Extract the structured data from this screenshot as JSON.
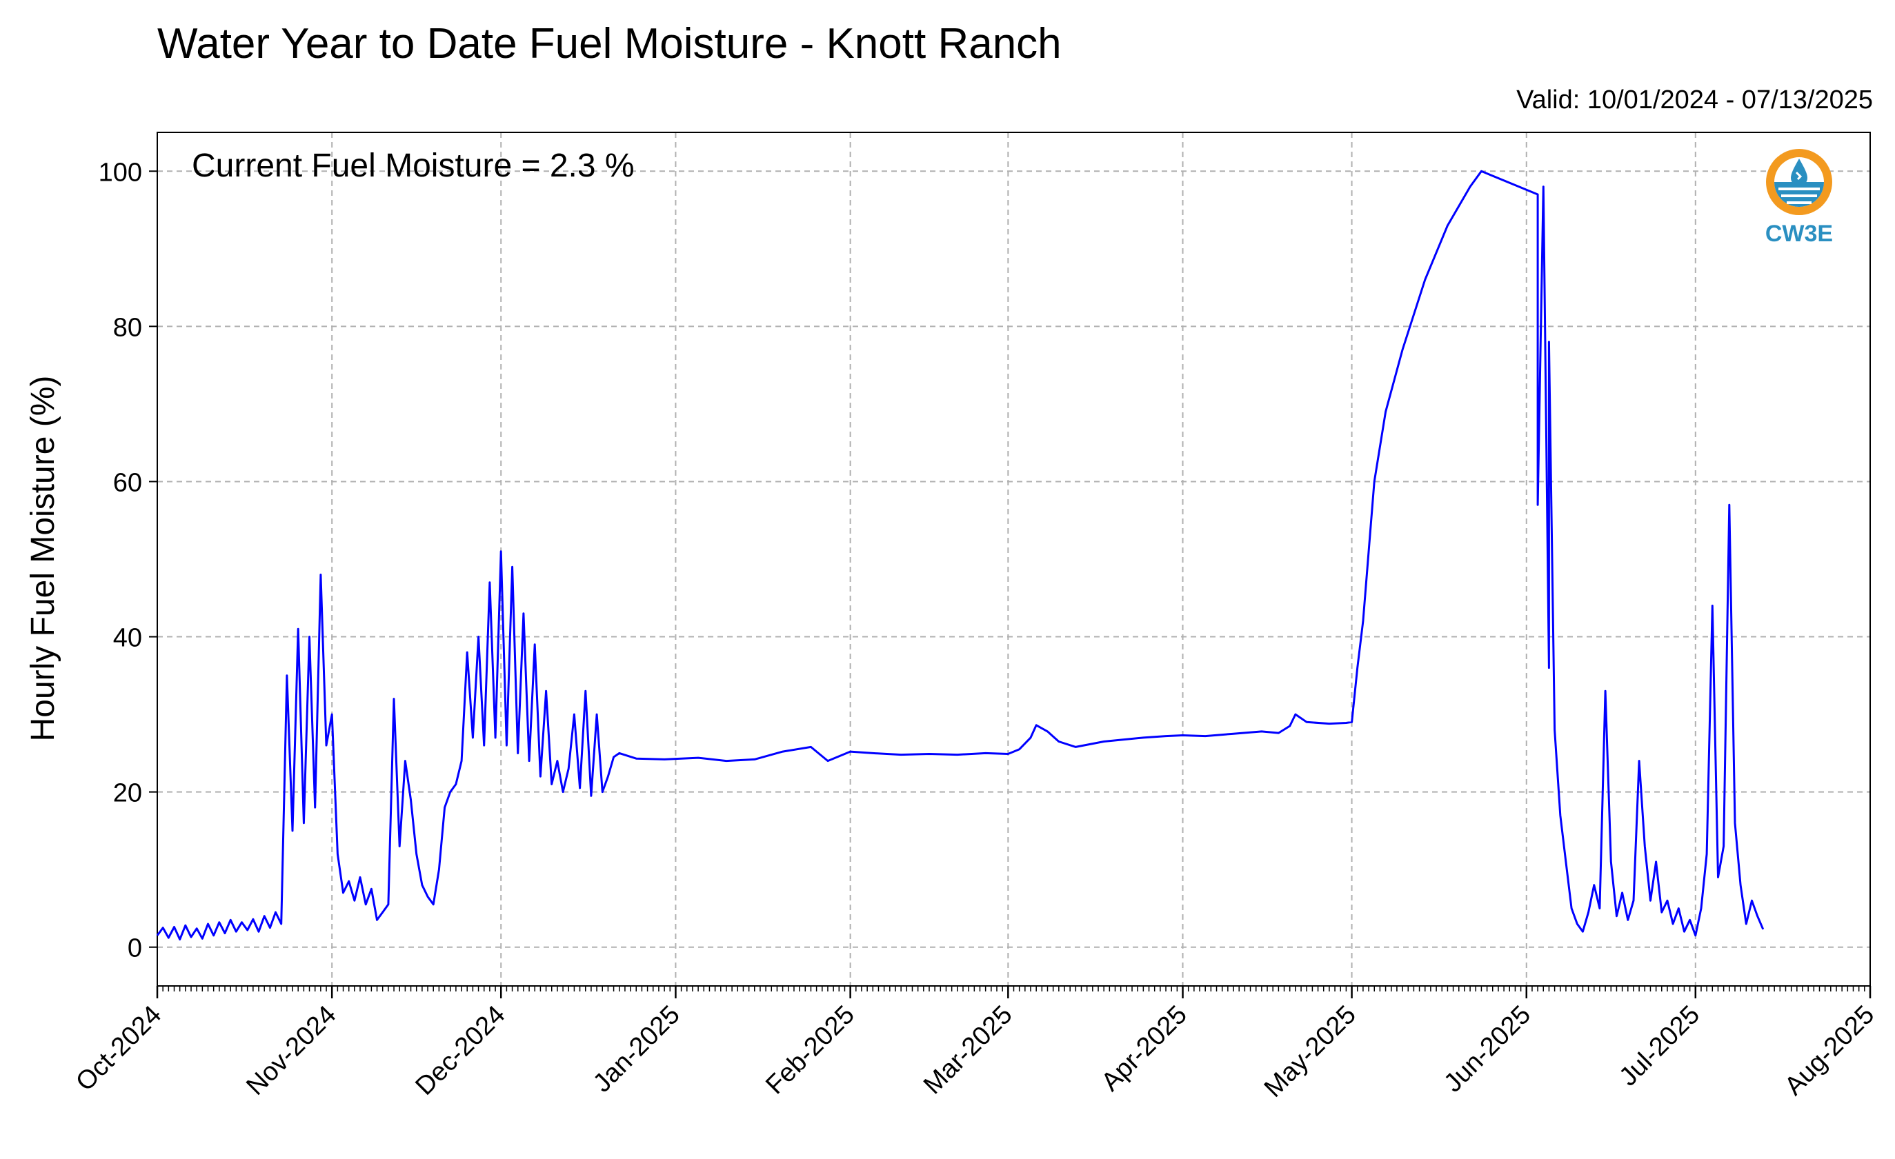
{
  "chart_data": {
    "type": "line",
    "title": "Water Year to Date Fuel Moisture - Knott Ranch",
    "subtitle": "Valid: 10/01/2024 - 07/13/2025",
    "annotation": "Current Fuel Moisture = 2.3 %",
    "xlabel": "",
    "ylabel": "Hourly Fuel Moisture (%)",
    "xlim": [
      "2024-10-01",
      "2025-08-01"
    ],
    "ylim": [
      -5,
      105
    ],
    "y_ticks": [
      0,
      20,
      40,
      60,
      80,
      100
    ],
    "x_ticks": [
      {
        "date": "2024-10-01",
        "label": "Oct-2024"
      },
      {
        "date": "2024-11-01",
        "label": "Nov-2024"
      },
      {
        "date": "2024-12-01",
        "label": "Dec-2024"
      },
      {
        "date": "2025-01-01",
        "label": "Jan-2025"
      },
      {
        "date": "2025-02-01",
        "label": "Feb-2025"
      },
      {
        "date": "2025-03-01",
        "label": "Mar-2025"
      },
      {
        "date": "2025-04-01",
        "label": "Apr-2025"
      },
      {
        "date": "2025-05-01",
        "label": "May-2025"
      },
      {
        "date": "2025-06-01",
        "label": "Jun-2025"
      },
      {
        "date": "2025-07-01",
        "label": "Jul-2025"
      },
      {
        "date": "2025-08-01",
        "label": "Aug-2025"
      }
    ],
    "grid": true,
    "line_color": "#0000ff",
    "series": [
      {
        "name": "",
        "points": [
          [
            "2024-10-01",
            1.5
          ],
          [
            "2024-10-02",
            2.5
          ],
          [
            "2024-10-03",
            1.2
          ],
          [
            "2024-10-04",
            2.6
          ],
          [
            "2024-10-05",
            1.0
          ],
          [
            "2024-10-06",
            2.8
          ],
          [
            "2024-10-07",
            1.3
          ],
          [
            "2024-10-08",
            2.4
          ],
          [
            "2024-10-09",
            1.1
          ],
          [
            "2024-10-10",
            3.0
          ],
          [
            "2024-10-11",
            1.5
          ],
          [
            "2024-10-12",
            3.2
          ],
          [
            "2024-10-13",
            1.8
          ],
          [
            "2024-10-14",
            3.5
          ],
          [
            "2024-10-15",
            2.0
          ],
          [
            "2024-10-16",
            3.2
          ],
          [
            "2024-10-17",
            2.2
          ],
          [
            "2024-10-18",
            3.6
          ],
          [
            "2024-10-19",
            2.0
          ],
          [
            "2024-10-20",
            4.0
          ],
          [
            "2024-10-21",
            2.5
          ],
          [
            "2024-10-22",
            4.5
          ],
          [
            "2024-10-23",
            3.0
          ],
          [
            "2024-10-24",
            35.0
          ],
          [
            "2024-10-25",
            15.0
          ],
          [
            "2024-10-26",
            41.0
          ],
          [
            "2024-10-27",
            16.0
          ],
          [
            "2024-10-28",
            40.0
          ],
          [
            "2024-10-29",
            18.0
          ],
          [
            "2024-10-30",
            48.0
          ],
          [
            "2024-10-31",
            26.0
          ],
          [
            "2024-11-01",
            30.0
          ],
          [
            "2024-11-02",
            12.0
          ],
          [
            "2024-11-03",
            7.0
          ],
          [
            "2024-11-04",
            8.5
          ],
          [
            "2024-11-05",
            6.0
          ],
          [
            "2024-11-06",
            9.0
          ],
          [
            "2024-11-07",
            5.5
          ],
          [
            "2024-11-08",
            7.5
          ],
          [
            "2024-11-09",
            3.5
          ],
          [
            "2024-11-10",
            4.5
          ],
          [
            "2024-11-11",
            5.5
          ],
          [
            "2024-11-12",
            32.0
          ],
          [
            "2024-11-13",
            13.0
          ],
          [
            "2024-11-14",
            24.0
          ],
          [
            "2024-11-15",
            19.0
          ],
          [
            "2024-11-16",
            12.0
          ],
          [
            "2024-11-17",
            8.0
          ],
          [
            "2024-11-18",
            6.5
          ],
          [
            "2024-11-19",
            5.5
          ],
          [
            "2024-11-20",
            10.0
          ],
          [
            "2024-11-21",
            18.0
          ],
          [
            "2024-11-22",
            20.0
          ],
          [
            "2024-11-23",
            21.0
          ],
          [
            "2024-11-24",
            24.0
          ],
          [
            "2024-11-25",
            38.0
          ],
          [
            "2024-11-26",
            27.0
          ],
          [
            "2024-11-27",
            40.0
          ],
          [
            "2024-11-28",
            26.0
          ],
          [
            "2024-11-29",
            47.0
          ],
          [
            "2024-11-30",
            27.0
          ],
          [
            "2024-12-01",
            51.0
          ],
          [
            "2024-12-02",
            26.0
          ],
          [
            "2024-12-03",
            49.0
          ],
          [
            "2024-12-04",
            25.0
          ],
          [
            "2024-12-05",
            43.0
          ],
          [
            "2024-12-06",
            24.0
          ],
          [
            "2024-12-07",
            39.0
          ],
          [
            "2024-12-08",
            22.0
          ],
          [
            "2024-12-09",
            33.0
          ],
          [
            "2024-12-10",
            21.0
          ],
          [
            "2024-12-11",
            24.0
          ],
          [
            "2024-12-12",
            20.0
          ],
          [
            "2024-12-13",
            23.0
          ],
          [
            "2024-12-14",
            30.0
          ],
          [
            "2024-12-15",
            20.5
          ],
          [
            "2024-12-16",
            33.0
          ],
          [
            "2024-12-17",
            19.5
          ],
          [
            "2024-12-18",
            30.0
          ],
          [
            "2024-12-19",
            20.0
          ],
          [
            "2024-12-20",
            22.0
          ],
          [
            "2024-12-21",
            24.5
          ],
          [
            "2024-12-22",
            25.0
          ],
          [
            "2024-12-25",
            24.3
          ],
          [
            "2024-12-30",
            24.2
          ],
          [
            "2025-01-05",
            24.4
          ],
          [
            "2025-01-10",
            24.0
          ],
          [
            "2025-01-15",
            24.2
          ],
          [
            "2025-01-20",
            25.2
          ],
          [
            "2025-01-25",
            25.8
          ],
          [
            "2025-01-28",
            24.0
          ],
          [
            "2025-02-01",
            25.2
          ],
          [
            "2025-02-05",
            25.0
          ],
          [
            "2025-02-10",
            24.8
          ],
          [
            "2025-02-15",
            24.9
          ],
          [
            "2025-02-20",
            24.8
          ],
          [
            "2025-02-25",
            25.0
          ],
          [
            "2025-03-01",
            24.9
          ],
          [
            "2025-03-03",
            25.5
          ],
          [
            "2025-03-05",
            27.0
          ],
          [
            "2025-03-06",
            28.6
          ],
          [
            "2025-03-08",
            27.8
          ],
          [
            "2025-03-10",
            26.5
          ],
          [
            "2025-03-13",
            25.8
          ],
          [
            "2025-03-18",
            26.5
          ],
          [
            "2025-03-25",
            27.0
          ],
          [
            "2025-03-29",
            27.2
          ],
          [
            "2025-04-01",
            27.3
          ],
          [
            "2025-04-05",
            27.2
          ],
          [
            "2025-04-10",
            27.5
          ],
          [
            "2025-04-15",
            27.8
          ],
          [
            "2025-04-18",
            27.6
          ],
          [
            "2025-04-20",
            28.5
          ],
          [
            "2025-04-21",
            30.0
          ],
          [
            "2025-04-23",
            29.0
          ],
          [
            "2025-04-27",
            28.8
          ],
          [
            "2025-04-30",
            28.9
          ],
          [
            "2025-05-01",
            29.0
          ],
          [
            "2025-05-02",
            36.0
          ],
          [
            "2025-05-03",
            42.0
          ],
          [
            "2025-05-05",
            60.0
          ],
          [
            "2025-05-07",
            69.0
          ],
          [
            "2025-05-10",
            77.0
          ],
          [
            "2025-05-14",
            86.0
          ],
          [
            "2025-05-18",
            93.0
          ],
          [
            "2025-05-22",
            98.0
          ],
          [
            "2025-05-24",
            100.0
          ],
          [
            "2025-06-03",
            97.0
          ],
          [
            "2025-06-03",
            57.0
          ],
          [
            "2025-06-04",
            98.0
          ],
          [
            "2025-06-05",
            36.0
          ],
          [
            "2025-06-05",
            78.0
          ],
          [
            "2025-06-06",
            28.0
          ],
          [
            "2025-06-07",
            17.0
          ],
          [
            "2025-06-08",
            11.0
          ],
          [
            "2025-06-09",
            5.0
          ],
          [
            "2025-06-10",
            3.0
          ],
          [
            "2025-06-11",
            2.0
          ],
          [
            "2025-06-12",
            4.5
          ],
          [
            "2025-06-13",
            8.0
          ],
          [
            "2025-06-14",
            5.0
          ],
          [
            "2025-06-15",
            33.0
          ],
          [
            "2025-06-16",
            11.0
          ],
          [
            "2025-06-17",
            4.0
          ],
          [
            "2025-06-18",
            7.0
          ],
          [
            "2025-06-19",
            3.5
          ],
          [
            "2025-06-20",
            6.0
          ],
          [
            "2025-06-21",
            24.0
          ],
          [
            "2025-06-22",
            13.0
          ],
          [
            "2025-06-23",
            6.0
          ],
          [
            "2025-06-24",
            11.0
          ],
          [
            "2025-06-25",
            4.5
          ],
          [
            "2025-06-26",
            6.0
          ],
          [
            "2025-06-27",
            3.0
          ],
          [
            "2025-06-28",
            5.0
          ],
          [
            "2025-06-29",
            2.0
          ],
          [
            "2025-06-30",
            3.5
          ],
          [
            "2025-07-01",
            1.5
          ],
          [
            "2025-07-02",
            5.0
          ],
          [
            "2025-07-03",
            12.0
          ],
          [
            "2025-07-04",
            44.0
          ],
          [
            "2025-07-05",
            9.0
          ],
          [
            "2025-07-06",
            13.0
          ],
          [
            "2025-07-07",
            57.0
          ],
          [
            "2025-07-08",
            16.0
          ],
          [
            "2025-07-09",
            8.0
          ],
          [
            "2025-07-10",
            3.0
          ],
          [
            "2025-07-11",
            6.0
          ],
          [
            "2025-07-12",
            4.0
          ],
          [
            "2025-07-13",
            2.3
          ]
        ]
      }
    ]
  }
}
